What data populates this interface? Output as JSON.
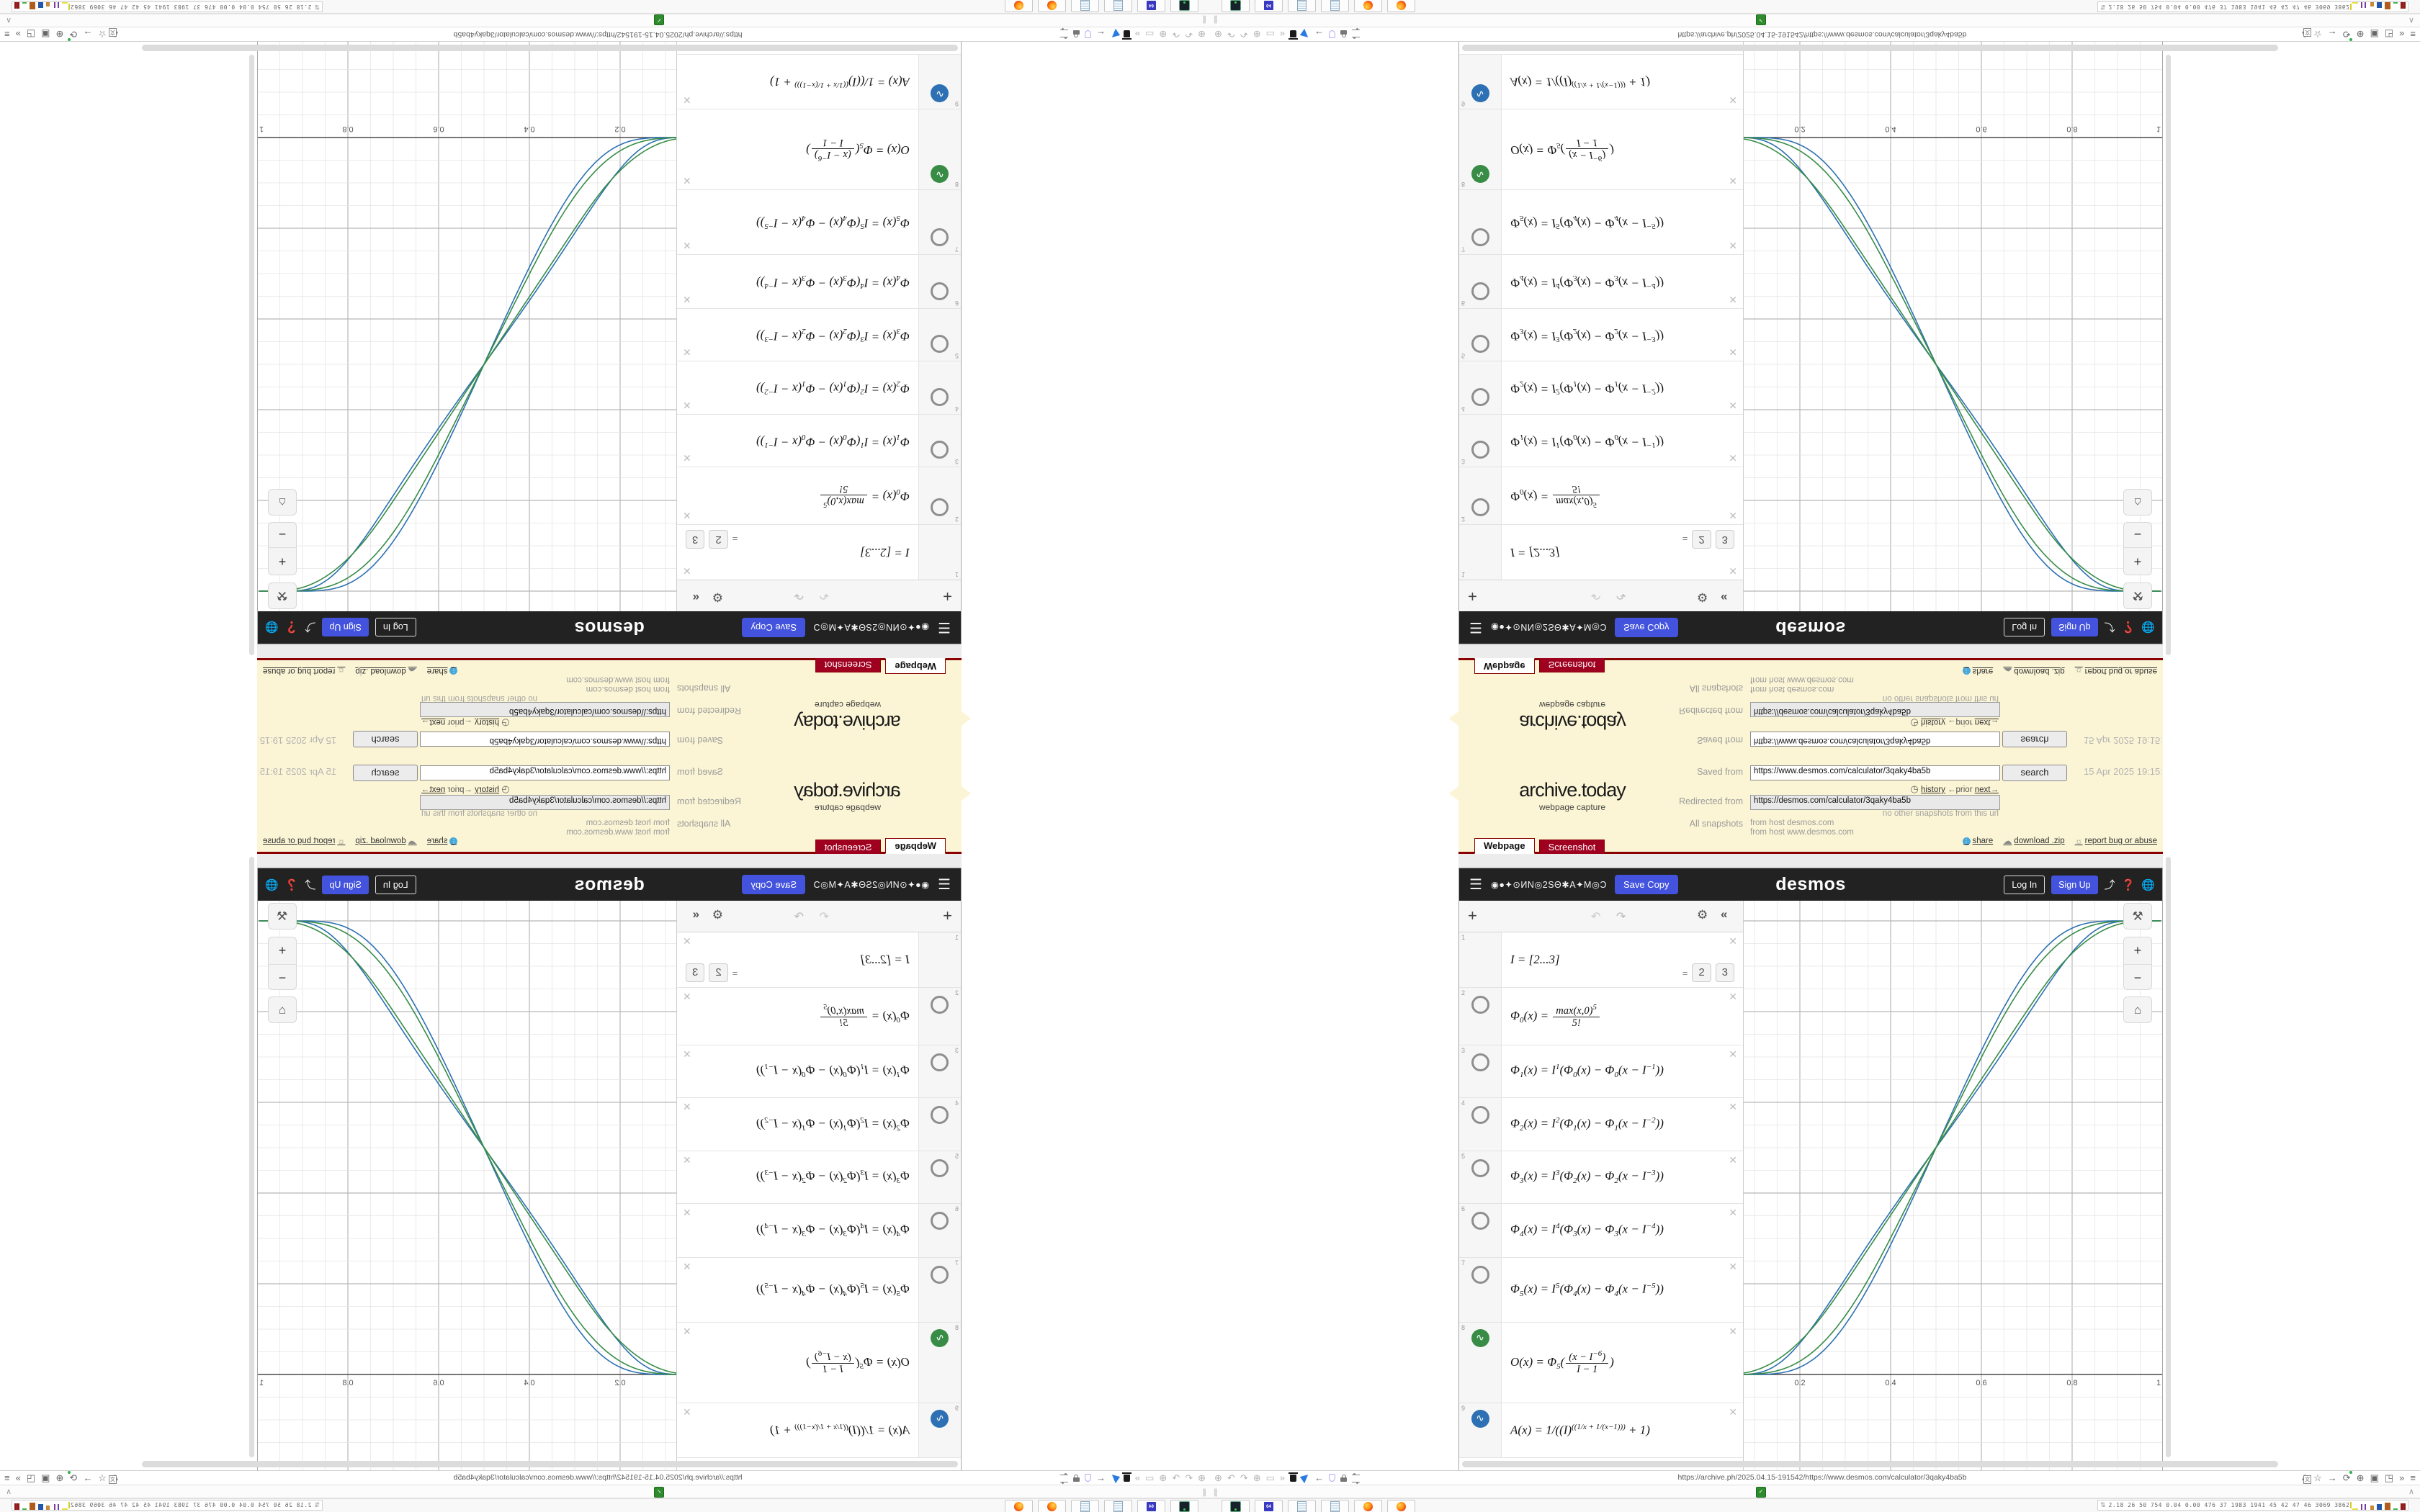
{
  "archive": {
    "logo": "archive.today",
    "tagline": "webpage capture",
    "saved_from_label": "Saved from",
    "saved_from_url": "https://www.desmos.com/calculator/3qaky4ba5b",
    "search_label": "search",
    "snapshot_date": "15 Apr 2025 19:15:42 UTC",
    "history_label": "history",
    "prior_label": "←prior",
    "next_label": "next→",
    "redirected_from_label": "Redirected from",
    "redirected_from_url": "https://desmos.com/calculator/3qaky4ba5b",
    "no_other_snapshots": "no other snapshots from this url",
    "all_snapshots_label": "All snapshots",
    "host_line_1": "from host desmos.com",
    "host_line_2": "from host www.desmos.com",
    "share_label": "share",
    "download_label": "download .zip",
    "report_label": "report bug or abuse",
    "tabs": [
      {
        "label": "Webpage",
        "active": true
      },
      {
        "label": "Screenshot",
        "active": false
      }
    ]
  },
  "desmos": {
    "title": "◉●✦⊙ИN◎2SΘ✱A✦M◎Ɔ…",
    "save_copy_label": "Save Copy",
    "logo": "desmos",
    "log_in_label": "Log In",
    "sign_up_label": "Sign Up",
    "toolbar": {
      "add": "+",
      "undo": "↶",
      "redo": "↷",
      "gear": "⚙",
      "collapse": "«"
    },
    "expressions": [
      {
        "num": "1",
        "icon": "none",
        "h": 77,
        "seg": [
          "I = [2...3]"
        ],
        "chips": [
          "2",
          "3"
        ]
      },
      {
        "num": "2",
        "icon": "circle",
        "h": 80,
        "seg": [
          "Φ",
          {
            "s": "0"
          },
          "(x) = ",
          {
            "f": {
              "n": [
                "max(x,0)",
                {
                  "p": "5"
                }
              ],
              "d": [
                "5!"
              ]
            }
          }
        ]
      },
      {
        "num": "3",
        "icon": "circle",
        "h": 73,
        "seg": [
          "Φ",
          {
            "s": "1"
          },
          "(x) = I",
          {
            "p": "1"
          },
          "(Φ",
          {
            "s": "0"
          },
          "(x) − Φ",
          {
            "s": "0"
          },
          "(x − I",
          {
            "p": "−1"
          },
          "))"
        ]
      },
      {
        "num": "4",
        "icon": "circle",
        "h": 74,
        "seg": [
          "Φ",
          {
            "s": "2"
          },
          "(x) = I",
          {
            "p": "2"
          },
          "(Φ",
          {
            "s": "1"
          },
          "(x) − Φ",
          {
            "s": "1"
          },
          "(x − I",
          {
            "p": "−2"
          },
          "))"
        ]
      },
      {
        "num": "5",
        "icon": "circle",
        "h": 73,
        "seg": [
          "Φ",
          {
            "s": "3"
          },
          "(x) = I",
          {
            "p": "3"
          },
          "(Φ",
          {
            "s": "2"
          },
          "(x) − Φ",
          {
            "s": "2"
          },
          "(x − I",
          {
            "p": "−3"
          },
          "))"
        ]
      },
      {
        "num": "6",
        "icon": "circle",
        "h": 75,
        "seg": [
          "Φ",
          {
            "s": "4"
          },
          "(x) = I",
          {
            "p": "4"
          },
          "(Φ",
          {
            "s": "3"
          },
          "(x) − Φ",
          {
            "s": "3"
          },
          "(x − I",
          {
            "p": "−4"
          },
          "))"
        ]
      },
      {
        "num": "7",
        "icon": "circle",
        "h": 90,
        "seg": [
          "Φ",
          {
            "s": "5"
          },
          "(x) = I",
          {
            "p": "5"
          },
          "(Φ",
          {
            "s": "4"
          },
          "(x) − Φ",
          {
            "s": "4"
          },
          "(x − I",
          {
            "p": "−5"
          },
          "))"
        ]
      },
      {
        "num": "8",
        "icon": "green",
        "h": 112,
        "seg": [
          "O(x) = Φ",
          {
            "s": "5"
          },
          "(",
          {
            "f": {
              "n": [
                "(x − I",
                {
                  "p": "−6"
                },
                ")"
              ],
              "d": [
                "I − 1"
              ]
            }
          },
          ")"
        ]
      },
      {
        "num": "9",
        "icon": "blue",
        "h": 76,
        "seg": [
          "A(x) = 1/((I)",
          {
            "p": "((1/x + 1/(x−1)))"
          },
          " + 1)"
        ]
      }
    ],
    "graph": {
      "type": "line",
      "x_ticks": [
        "0.2",
        "0.4",
        "0.6",
        "0.8",
        "1"
      ],
      "x_tick_values": [
        0.2,
        0.4,
        0.6,
        0.8,
        1
      ],
      "xlim": [
        0.076,
        1.002
      ],
      "ylim": [
        -0.19,
        1.044
      ],
      "major_step": 0.2,
      "minor_step": 0.05,
      "grid": true,
      "curves": [
        {
          "name": "A(x) with I=2",
          "color": "#2d70b3",
          "formula": "A",
          "I": 2
        },
        {
          "name": "A(x) with I=3",
          "color": "#2d70b3",
          "formula": "A",
          "I": 3
        },
        {
          "name": "O(x) with I=2",
          "color": "#388c46",
          "formula": "O",
          "I": 2
        },
        {
          "name": "O(x) with I=3",
          "color": "#388c46",
          "formula": "O",
          "I": 3
        }
      ]
    },
    "colors": {
      "blue": "#2d70b3",
      "green": "#388c46",
      "accent": "#4353dd"
    }
  },
  "chrome": {
    "url": "https://archive.ph/2025.04.15-191542/https://www.desmos.com/calculator/3qaky4ba5b",
    "left_icons": [
      {
        "name": "page-globe-icon",
        "glyph": "⊕"
      },
      {
        "name": "undo-icon",
        "glyph": "↶"
      },
      {
        "name": "redo-icon",
        "glyph": "↷"
      },
      {
        "name": "globe-icon",
        "glyph": "⊕"
      },
      {
        "name": "folder-icon",
        "glyph": "▭"
      },
      {
        "name": "overflow-chevrons-icon",
        "glyph": "»"
      },
      {
        "name": "trash-icon",
        "css": "i-trash"
      },
      {
        "name": "send-icon",
        "css": "i-plane"
      },
      {
        "name": "back-arrow-icon",
        "glyph": "←",
        "dark": true
      },
      {
        "name": "shield-icon",
        "css": "i-shield"
      },
      {
        "name": "lock-icon",
        "css": "i-lock"
      },
      {
        "name": "tune-icon",
        "css": "i-tune"
      }
    ],
    "right_icons": [
      {
        "name": "translate-icon",
        "translate": true
      },
      {
        "name": "bookmark-star-icon",
        "glyph": "☆",
        "dark": true
      },
      {
        "name": "forward-arrow-icon",
        "glyph": "→",
        "dark": true
      },
      {
        "name": "reload-icon",
        "glyph": "⟳",
        "dark": true,
        "dot": true
      },
      {
        "name": "globe-icon",
        "glyph": "⊕",
        "dark": true
      },
      {
        "name": "container-icon",
        "glyph": "▣",
        "dark": true
      },
      {
        "name": "extension-puzzle-icon",
        "glyph": "◳",
        "dark": true
      },
      {
        "name": "overflow-chevrons-icon",
        "glyph": "»",
        "dark": true
      },
      {
        "name": "menu-icon",
        "glyph": "≡",
        "dark": true
      }
    ],
    "tab_pause_glyph": "∥",
    "tab_collapse_glyph": "∧",
    "favicon_glyph": "✓"
  },
  "taskbar": {
    "apps": [
      {
        "name": "dosbox",
        "css": "dbicon"
      },
      {
        "name": "archiver-64",
        "css": "flicon",
        "label": "64"
      },
      {
        "name": "notepad",
        "css": "npicon"
      },
      {
        "name": "notepad",
        "css": "npicon"
      },
      {
        "name": "firefox",
        "css": "fficon"
      },
      {
        "name": "firefox",
        "css": "fficon"
      }
    ],
    "monitor": {
      "icon": "⇅",
      "values": [
        "2.18",
        "26",
        "50",
        "754",
        "0.04",
        "0.00",
        "476",
        "37",
        "1983",
        "1941",
        "45",
        "42",
        "47",
        "46",
        "3069",
        "3862"
      ]
    }
  },
  "layout_note": "Single quadrant mirrored: left half = horizontal flip, top half = vertical flip"
}
